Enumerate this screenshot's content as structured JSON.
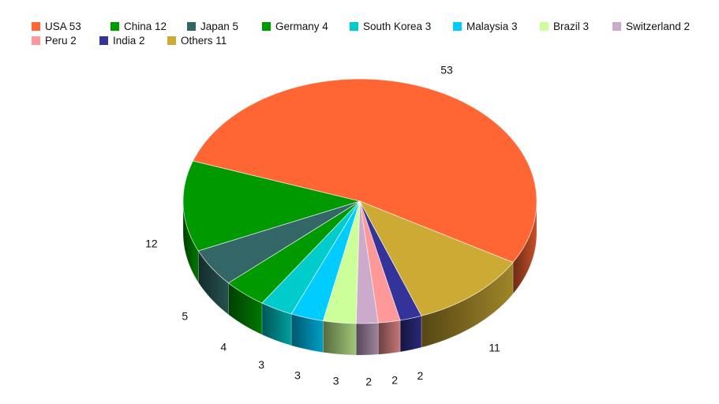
{
  "chart_data": {
    "type": "pie",
    "title": "",
    "style": "3d-pie",
    "legend_position": "top",
    "slices": [
      {
        "label": "USA",
        "value": 53,
        "color": "#FF6633"
      },
      {
        "label": "China",
        "value": 12,
        "color": "#009900"
      },
      {
        "label": "Japan",
        "value": 5,
        "color": "#336666"
      },
      {
        "label": "Germany",
        "value": 4,
        "color": "#009900"
      },
      {
        "label": "South Korea",
        "value": 3,
        "color": "#00CCCC"
      },
      {
        "label": "Malaysia",
        "value": 3,
        "color": "#00CCFF"
      },
      {
        "label": "Brazil",
        "value": 3,
        "color": "#CCFF99"
      },
      {
        "label": "Switzerland",
        "value": 2,
        "color": "#CCAACC"
      },
      {
        "label": "Peru",
        "value": 2,
        "color": "#FF9999"
      },
      {
        "label": "India",
        "value": 2,
        "color": "#333399"
      },
      {
        "label": "Others",
        "value": 11,
        "color": "#CCAA33"
      }
    ]
  },
  "legend": {
    "rows": [
      [
        {
          "text": "USA 53",
          "color": "#FF6633"
        },
        {
          "text": "China 12",
          "color": "#009900"
        },
        {
          "text": "Japan 5",
          "color": "#336666"
        },
        {
          "text": "Germany 4",
          "color": "#009900"
        },
        {
          "text": "South Korea 3",
          "color": "#00CCCC"
        },
        {
          "text": "Malaysia 3",
          "color": "#00CCFF"
        },
        {
          "text": "Brazil 3",
          "color": "#CCFF99"
        },
        {
          "text": "Switzerland 2",
          "color": "#CCAACC"
        }
      ],
      [
        {
          "text": "Peru 2",
          "color": "#FF9999"
        },
        {
          "text": "India 2",
          "color": "#333399"
        },
        {
          "text": "Others 11",
          "color": "#CCAA33"
        }
      ]
    ]
  }
}
